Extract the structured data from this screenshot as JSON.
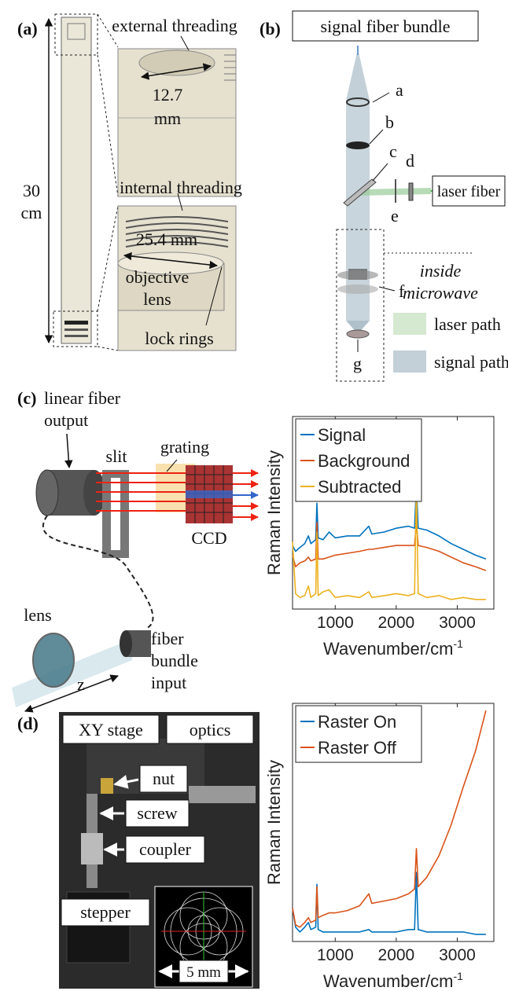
{
  "panel_a": {
    "label": "(a)",
    "external_threading": "external threading",
    "diameter_top": [
      "12.7",
      "mm"
    ],
    "length": [
      "30",
      "cm"
    ],
    "internal_threading": "internal threading",
    "diameter_bottom": "25.4 mm",
    "objective_lens": [
      "objective",
      "lens"
    ],
    "lock_rings": "lock rings"
  },
  "panel_b": {
    "label": "(b)",
    "signal_fiber_bundle": "signal fiber bundle",
    "components": [
      "a",
      "b",
      "c",
      "d",
      "e",
      "f",
      "g"
    ],
    "laser_fiber": "laser fiber",
    "inside_microwave": [
      "inside",
      "microwave"
    ],
    "legend": [
      "laser path",
      "signal path"
    ]
  },
  "panel_c": {
    "label": "(c)",
    "linear_fiber_output": [
      "linear fiber",
      "output"
    ],
    "slit": "slit",
    "grating": "grating",
    "ccd": "CCD",
    "lens": "lens",
    "fiber_bundle_input": [
      "fiber",
      "bundle",
      "input"
    ],
    "z": "z"
  },
  "panel_d": {
    "label": "(d)",
    "xy_stage": "XY stage",
    "optics": "optics",
    "nut": "nut",
    "screw": "screw",
    "coupler": "coupler",
    "stepper": "stepper",
    "scale": "5 mm"
  },
  "chart_data": [
    {
      "type": "line",
      "ylabel": "Raman Intensity",
      "xlabel": "Wavenumber/cm",
      "xlabel_superscript": "-1",
      "legend": "upper left",
      "x": [
        300,
        350,
        420,
        500,
        560,
        600,
        680,
        700,
        720,
        800,
        900,
        1000,
        1200,
        1400,
        1550,
        1600,
        1800,
        2000,
        2200,
        2300,
        2330,
        2360,
        2500,
        2700,
        2900,
        3100,
        3300,
        3470
      ],
      "series": [
        {
          "name": "Signal",
          "color": "#0072bd",
          "values": [
            33,
            30,
            32,
            34,
            38,
            34,
            36,
            55,
            37,
            36,
            40,
            37,
            38,
            38,
            43,
            39,
            40,
            42,
            43,
            42,
            64,
            42,
            41,
            38,
            34,
            31,
            28,
            26
          ]
        },
        {
          "name": "Background",
          "color": "#d95319",
          "values": [
            28,
            22,
            24,
            25,
            27,
            25,
            26,
            45,
            26,
            26,
            27,
            28,
            29,
            30,
            31,
            31,
            32,
            33,
            33,
            33,
            45,
            33,
            32,
            30,
            27,
            24,
            22,
            20
          ]
        },
        {
          "name": "Subtracted",
          "color": "#edb120",
          "values": [
            35,
            8,
            6,
            7,
            12,
            6,
            8,
            40,
            7,
            9,
            10,
            6,
            7,
            6,
            9,
            6,
            7,
            8,
            7,
            8,
            64,
            8,
            6,
            7,
            5,
            6,
            5,
            5
          ]
        }
      ],
      "xlim": [
        300,
        3600
      ],
      "ylim": [
        0,
        100
      ],
      "xticks": [
        1000,
        2000,
        3000
      ]
    },
    {
      "type": "line",
      "ylabel": "Raman Intensity",
      "xlabel": "Wavenumber/cm",
      "xlabel_superscript": "-1",
      "legend": "upper left",
      "x": [
        300,
        350,
        420,
        500,
        560,
        600,
        680,
        700,
        720,
        800,
        900,
        1000,
        1200,
        1400,
        1550,
        1600,
        1800,
        2000,
        2200,
        2300,
        2330,
        2360,
        2500,
        2700,
        2900,
        3100,
        3300,
        3470
      ],
      "series": [
        {
          "name": "Raster On",
          "color": "#0072bd",
          "values": [
            14,
            6,
            4,
            6,
            8,
            5,
            6,
            24,
            5,
            4,
            4,
            4,
            4,
            4,
            5,
            4,
            4,
            4,
            5,
            5,
            29,
            5,
            4,
            4,
            4,
            4,
            3,
            3
          ]
        },
        {
          "name": "Raster Off",
          "color": "#d95319",
          "values": [
            14,
            7,
            6,
            8,
            10,
            8,
            9,
            23,
            10,
            11,
            12,
            12,
            13,
            15,
            20,
            16,
            17,
            18,
            20,
            22,
            39,
            23,
            27,
            36,
            49,
            65,
            80,
            97
          ]
        }
      ],
      "xlim": [
        300,
        3600
      ],
      "ylim": [
        0,
        100
      ],
      "xticks": [
        1000,
        2000,
        3000
      ]
    }
  ]
}
